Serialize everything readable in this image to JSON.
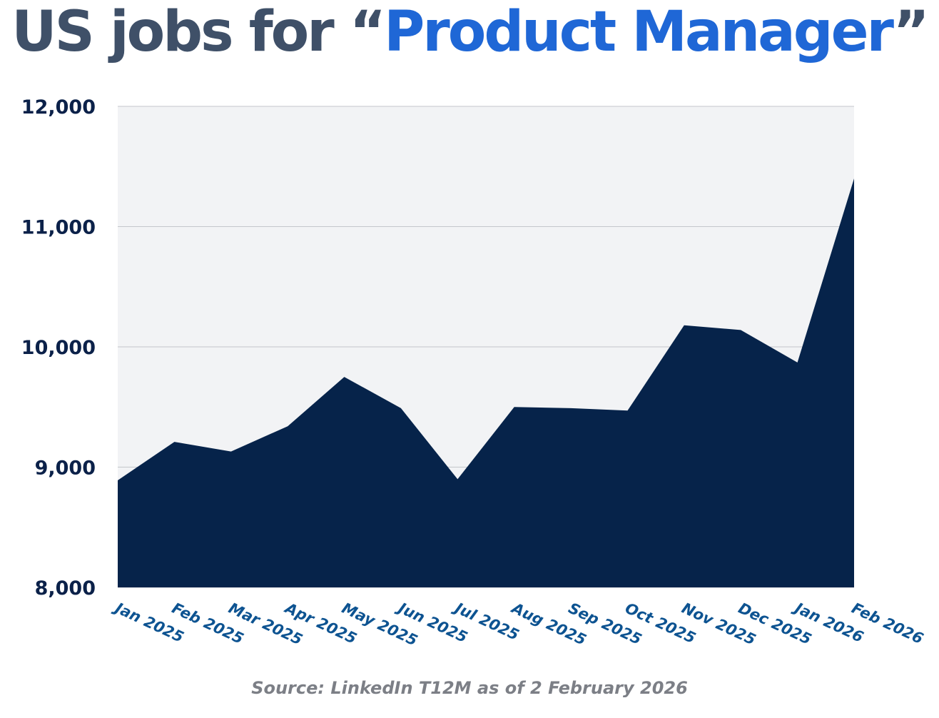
{
  "header": {
    "title_prefix": "US jobs for “",
    "title_highlight": "Product Manager",
    "title_suffix": "”"
  },
  "footer": {
    "source": "Source: LinkedIn T12M as of 2 February 2026"
  },
  "colors": {
    "title_dark": "#3f5068",
    "title_accent": "#1f67d6",
    "area_fill": "#06234a",
    "plot_background": "#f2f3f5",
    "gridline": "#c4c6cb",
    "y_tick_text": "#0b2149",
    "x_tick_text": "#0d5391"
  },
  "chart_data": {
    "type": "area",
    "title": "US jobs for “Product Manager”",
    "xlabel": "",
    "ylabel": "",
    "grid": true,
    "legend": "none",
    "ylim": [
      8000,
      12000
    ],
    "yticks": [
      8000,
      9000,
      10000,
      11000,
      12000
    ],
    "ytick_labels": [
      "8,000",
      "9,000",
      "10,000",
      "11,000",
      "12,000"
    ],
    "categories": [
      "Jan 2025",
      "Feb 2025",
      "Mar 2025",
      "Apr 2025",
      "May 2025",
      "Jun 2025",
      "Jul 2025",
      "Aug 2025",
      "Sep 2025",
      "Oct 2025",
      "Nov 2025",
      "Dec 2025",
      "Jan 2026",
      "Feb 2026"
    ],
    "series": [
      {
        "name": "US jobs for Product Manager",
        "values": [
          8890,
          9210,
          9130,
          9340,
          9750,
          9490,
          8900,
          9500,
          9490,
          9470,
          10180,
          10140,
          9870,
          11400
        ]
      }
    ]
  }
}
